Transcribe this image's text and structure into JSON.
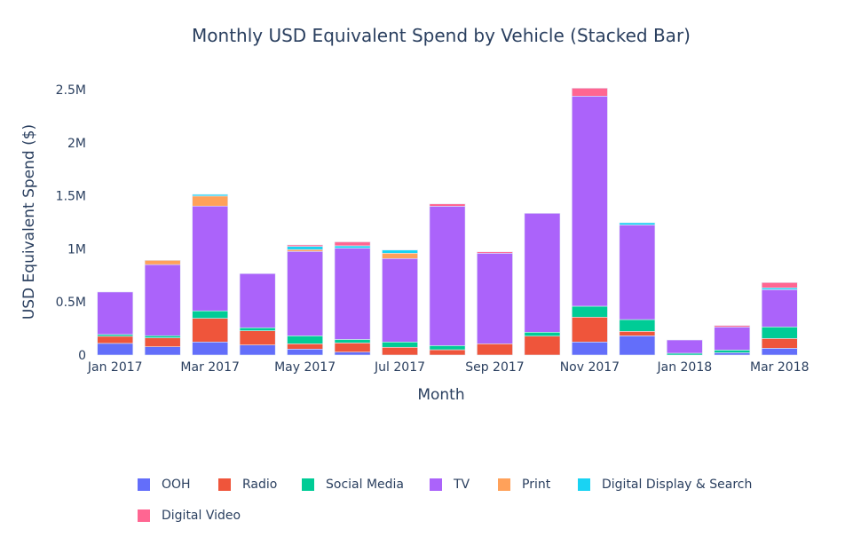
{
  "chart_data": {
    "type": "bar",
    "barmode": "stack",
    "title": "Monthly USD Equivalent Spend by Vehicle (Stacked Bar)",
    "xlabel": "Month",
    "ylabel": "USD Equivalent Spend ($)",
    "ylim": [
      0,
      2640000
    ],
    "y_ticks": [
      0,
      500000,
      1000000,
      1500000,
      2000000,
      2500000
    ],
    "y_tick_labels": [
      "0",
      "0.5M",
      "1M",
      "1.5M",
      "2M",
      "2.5M"
    ],
    "categories": [
      "Jan 2017",
      "Feb 2017",
      "Mar 2017",
      "Apr 2017",
      "May 2017",
      "Jun 2017",
      "Jul 2017",
      "Aug 2017",
      "Sep 2017",
      "Oct 2017",
      "Nov 2017",
      "Dec 2017",
      "Jan 2018",
      "Feb 2018",
      "Mar 2018"
    ],
    "x_tick_labels": [
      {
        "index": 0,
        "label": "Jan 2017"
      },
      {
        "index": 2,
        "label": "Mar 2017"
      },
      {
        "index": 4,
        "label": "May 2017"
      },
      {
        "index": 6,
        "label": "Jul 2017"
      },
      {
        "index": 8,
        "label": "Sep 2017"
      },
      {
        "index": 10,
        "label": "Nov 2017"
      },
      {
        "index": 12,
        "label": "Jan 2018"
      },
      {
        "index": 14,
        "label": "Mar 2018"
      }
    ],
    "legend_position": "bottom",
    "grid": false,
    "series": [
      {
        "name": "OOH",
        "color": "#636efa",
        "values": [
          110000,
          78000,
          123000,
          95000,
          56000,
          28000,
          0,
          0,
          0,
          0,
          123000,
          181000,
          0,
          22000,
          64000
        ]
      },
      {
        "name": "Radio",
        "color": "#EF553B",
        "values": [
          67000,
          84000,
          223000,
          134000,
          50000,
          86000,
          73000,
          50000,
          106000,
          178000,
          234000,
          42000,
          0,
          0,
          92000
        ]
      },
      {
        "name": "Social Media",
        "color": "#00cc96",
        "values": [
          17000,
          20000,
          70000,
          28000,
          75000,
          33000,
          50000,
          39000,
          0,
          37000,
          103000,
          111000,
          17000,
          25000,
          109000
        ]
      },
      {
        "name": "TV",
        "color": "#ab63fa",
        "values": [
          400000,
          670000,
          987000,
          510000,
          795000,
          860000,
          786000,
          1313000,
          853000,
          1120000,
          1979000,
          892000,
          125000,
          217000,
          351000
        ]
      },
      {
        "name": "Print",
        "color": "#FFA15A",
        "values": [
          0,
          40000,
          95000,
          0,
          17000,
          0,
          50000,
          0,
          0,
          0,
          0,
          0,
          0,
          0,
          0
        ]
      },
      {
        "name": "Digital Display & Search",
        "color": "#19d3f3",
        "values": [
          0,
          0,
          15000,
          0,
          30000,
          22000,
          30000,
          0,
          0,
          0,
          0,
          20000,
          0,
          0,
          17000
        ]
      },
      {
        "name": "Digital Video",
        "color": "#FF6692",
        "values": [
          0,
          0,
          0,
          0,
          14000,
          37000,
          0,
          22000,
          13000,
          0,
          75000,
          0,
          0,
          14000,
          50000
        ]
      }
    ]
  }
}
